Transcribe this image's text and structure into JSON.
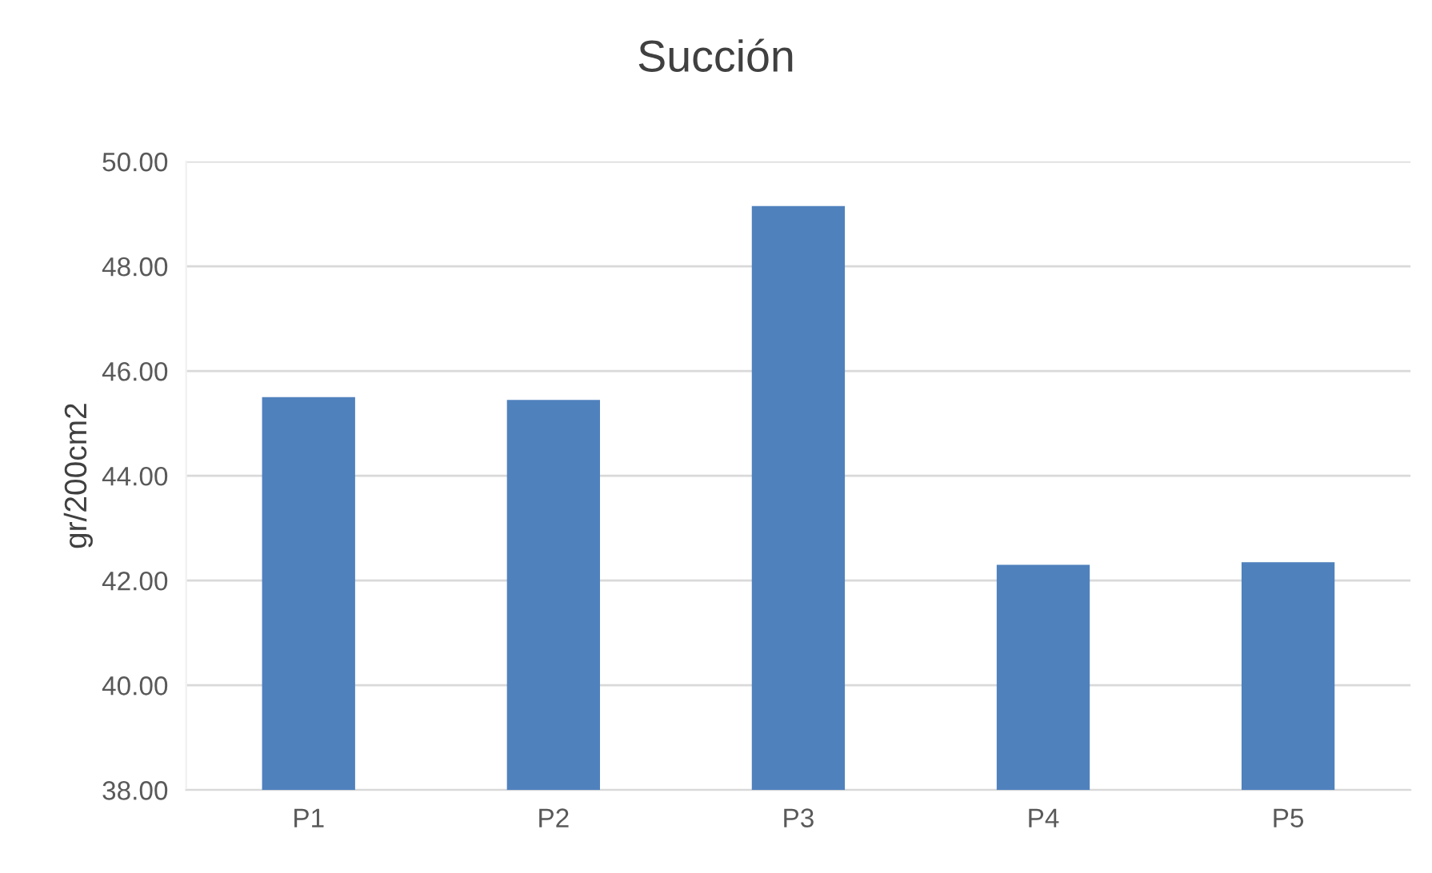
{
  "chart_data": {
    "type": "bar",
    "title": "Succión",
    "ylabel": "gr/200cm2",
    "categories": [
      "P1",
      "P2",
      "P3",
      "P4",
      "P5"
    ],
    "values": [
      45.5,
      45.45,
      49.15,
      42.3,
      42.35
    ],
    "color": "#4f81bd",
    "ylim": [
      38,
      50
    ],
    "yticks": [
      {
        "value": 38,
        "label": "38.00"
      },
      {
        "value": 40,
        "label": "40.00"
      },
      {
        "value": 42,
        "label": "42.00"
      },
      {
        "value": 44,
        "label": "44.00"
      },
      {
        "value": 46,
        "label": "46.00"
      },
      {
        "value": 48,
        "label": "48.00"
      },
      {
        "value": 50,
        "label": "50.00"
      }
    ],
    "grid": "y",
    "legend": false
  }
}
